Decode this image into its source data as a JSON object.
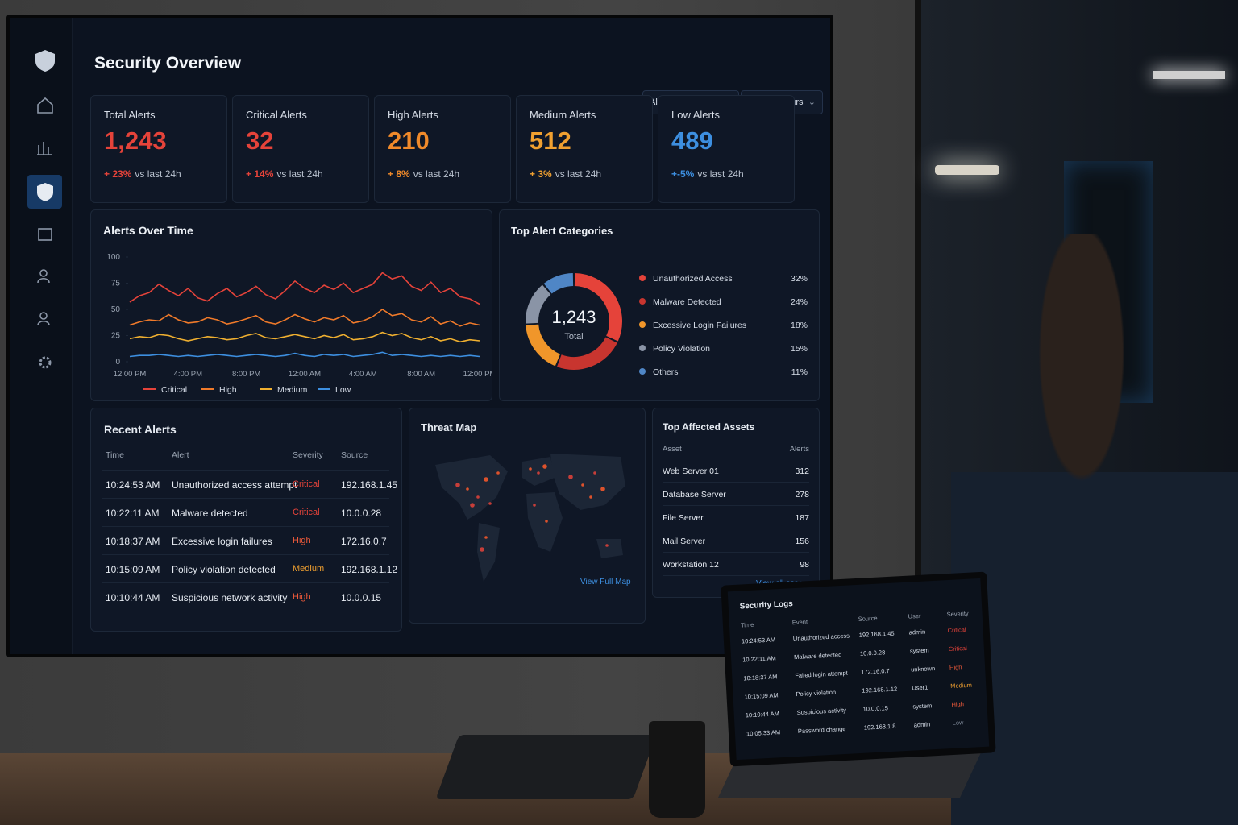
{
  "header": {
    "title": "Security Overview",
    "filters": [
      "All Environments",
      "Last 24 Hours"
    ]
  },
  "kpis": [
    {
      "label": "Total Alerts",
      "value": "1,243",
      "change": "+ 23%",
      "note": "vs last 24h",
      "color": "#e5433a"
    },
    {
      "label": "Critical Alerts",
      "value": "32",
      "change": "+ 14%",
      "note": "vs last 24h",
      "color": "#e5433a"
    },
    {
      "label": "High Alerts",
      "value": "210",
      "change": "+ 8%",
      "note": "vs last 24h",
      "color": "#f08a2a"
    },
    {
      "label": "Medium Alerts",
      "value": "512",
      "change": "+ 3%",
      "note": "vs last 24h",
      "color": "#f0a030"
    },
    {
      "label": "Low Alerts",
      "value": "489",
      "change": "+-5%",
      "note": "vs last 24h",
      "color": "#3d8fe0"
    }
  ],
  "chart_data": [
    {
      "type": "line",
      "title": "Alerts Over Time",
      "categories": [
        "12:00 PM",
        null,
        null,
        null,
        null,
        null,
        "4:00 PM",
        null,
        null,
        null,
        null,
        null,
        "8:00 PM",
        null,
        null,
        null,
        null,
        null,
        "12:00 AM",
        null,
        null,
        null,
        null,
        null,
        "4:00 AM",
        null,
        null,
        null,
        null,
        null,
        "8:00 AM",
        null,
        null,
        null,
        null,
        null,
        "12:00 PM"
      ],
      "series": [
        {
          "name": "Critical",
          "color": "#e5433a",
          "values": [
            57,
            63,
            66,
            74,
            68,
            63,
            70,
            61,
            58,
            65,
            70,
            62,
            66,
            72,
            64,
            60,
            68,
            77,
            70,
            66,
            73,
            69,
            75,
            66,
            70,
            74,
            85,
            79,
            82,
            72,
            68,
            76,
            66,
            70,
            62,
            60,
            55
          ]
        },
        {
          "name": "High",
          "color": "#f07a2a",
          "values": [
            35,
            38,
            40,
            39,
            45,
            40,
            37,
            38,
            42,
            40,
            36,
            38,
            41,
            44,
            38,
            36,
            40,
            45,
            41,
            38,
            42,
            40,
            44,
            37,
            39,
            43,
            50,
            44,
            46,
            40,
            38,
            43,
            36,
            39,
            34,
            37,
            35
          ]
        },
        {
          "name": "Medium",
          "color": "#f0b030",
          "values": [
            22,
            24,
            23,
            26,
            25,
            22,
            20,
            22,
            24,
            23,
            21,
            22,
            25,
            27,
            23,
            22,
            24,
            26,
            24,
            22,
            25,
            23,
            26,
            21,
            22,
            24,
            28,
            25,
            27,
            23,
            21,
            24,
            20,
            22,
            19,
            21,
            20
          ]
        },
        {
          "name": "Low",
          "color": "#3d8fe0",
          "values": [
            5,
            6,
            6,
            7,
            6,
            5,
            6,
            5,
            6,
            7,
            6,
            5,
            6,
            7,
            6,
            5,
            6,
            8,
            6,
            5,
            7,
            6,
            7,
            5,
            6,
            7,
            9,
            6,
            7,
            6,
            5,
            6,
            5,
            6,
            5,
            6,
            5
          ]
        }
      ],
      "ylim": [
        0,
        100
      ],
      "yticks": [
        0,
        25,
        50,
        75,
        100
      ],
      "grid": false
    },
    {
      "type": "donut",
      "title": "Top Alert Categories",
      "center_label": "1,243",
      "center_sublabel": "Total",
      "categories": [
        "Unauthorized Access",
        "Malware Detected",
        "Excessive Login Failures",
        "Policy Violation",
        "Others"
      ],
      "values": [
        32,
        24,
        18,
        15,
        11
      ],
      "value_labels": [
        "32%",
        "24%",
        "18%",
        "15%",
        "11%"
      ],
      "colors": [
        "#e5433a",
        "#c8352f",
        "#f0962a",
        "#8a94a6",
        "#4f86c6"
      ]
    }
  ],
  "severity_colors": {
    "Critical": "#e5433a",
    "High": "#ee5a3a",
    "Medium": "#f0a030",
    "Low": "#7d8796"
  },
  "recent_alerts": {
    "title": "Recent Alerts",
    "columns": [
      "Time",
      "Alert",
      "Severity",
      "Source"
    ],
    "rows": [
      [
        "10:24:53 AM",
        "Unauthorized access attempt",
        "Critical",
        "192.168.1.45"
      ],
      [
        "10:22:11 AM",
        "Malware detected",
        "Critical",
        "10.0.0.28"
      ],
      [
        "10:18:37 AM",
        "Excessive login failures",
        "High",
        "172.16.0.7"
      ],
      [
        "10:15:09 AM",
        "Policy violation detected",
        "Medium",
        "192.168.1.12"
      ],
      [
        "10:10:44 AM",
        "Suspicious network activity",
        "High",
        "10.0.0.15"
      ]
    ]
  },
  "threat_map": {
    "title": "Threat Map",
    "link": "View Full Map"
  },
  "top_assets": {
    "title": "Top Affected Assets",
    "columns": [
      "Asset",
      "Alerts"
    ],
    "rows": [
      [
        "Web Server 01",
        "312"
      ],
      [
        "Database Server",
        "278"
      ],
      [
        "File Server",
        "187"
      ],
      [
        "Mail Server",
        "156"
      ],
      [
        "Workstation 12",
        "98"
      ]
    ],
    "link": "View all assets"
  },
  "laptop": {
    "title": "Security Logs",
    "columns": [
      "Time",
      "Event",
      "Source",
      "User",
      "Severity"
    ],
    "rows": [
      [
        "10:24:53 AM",
        "Unauthorized access",
        "192.168.1.45",
        "admin",
        "Critical"
      ],
      [
        "10:22:11 AM",
        "Malware detected",
        "10.0.0.28",
        "system",
        "Critical"
      ],
      [
        "10:18:37 AM",
        "Failed login attempt",
        "172.16.0.7",
        "unknown",
        "High"
      ],
      [
        "10:15:09 AM",
        "Policy violation",
        "192.168.1.12",
        "User1",
        "Medium"
      ],
      [
        "10:10:44 AM",
        "Suspicious activity",
        "10.0.0.15",
        "system",
        "High"
      ],
      [
        "10:05:33 AM",
        "Password change",
        "192.168.1.8",
        "admin",
        "Low"
      ]
    ]
  }
}
